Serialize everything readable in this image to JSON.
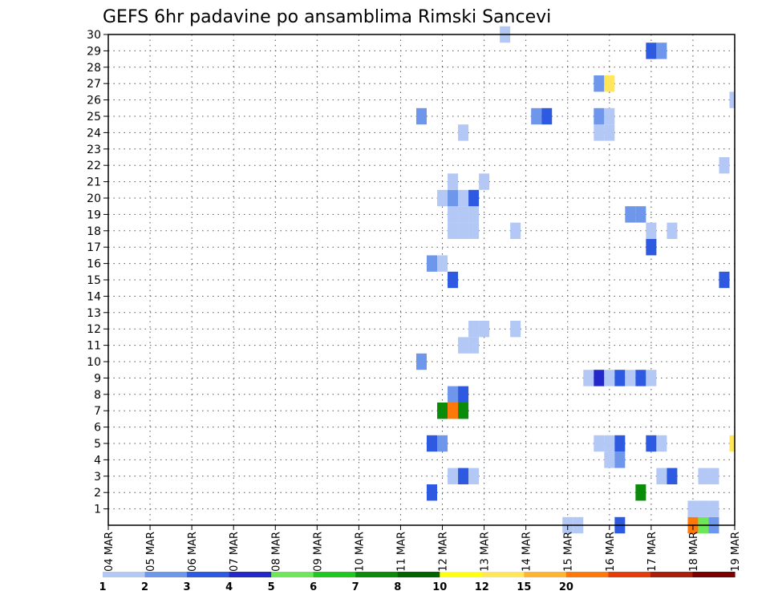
{
  "chart_data": {
    "type": "heatmap",
    "title": "GEFS 6hr padavine po ansamblima Rimski Sancevi",
    "x_tick_labels": [
      "04 MAR",
      "05 MAR",
      "06 MAR",
      "07 MAR",
      "08 MAR",
      "09 MAR",
      "10 MAR",
      "11 MAR",
      "12 MAR",
      "13 MAR",
      "14 MAR",
      "15 MAR",
      "16 MAR",
      "17 MAR",
      "18 MAR",
      "19 MAR"
    ],
    "y_tick_labels": [
      "1",
      "2",
      "3",
      "4",
      "5",
      "6",
      "7",
      "8",
      "9",
      "10",
      "11",
      "12",
      "13",
      "14",
      "15",
      "16",
      "17",
      "18",
      "19",
      "20",
      "21",
      "22",
      "23",
      "24",
      "25",
      "26",
      "27",
      "28",
      "29",
      "30"
    ],
    "xlim_days": [
      0,
      15
    ],
    "ylim": [
      0,
      30
    ],
    "cells_note": "x = days after 04 MAR 00Z in 6-hour steps, member = ensemble member (0-30), level = precipitation class index",
    "cells": [
      {
        "x": 11.0,
        "member": 0,
        "level": 0
      },
      {
        "x": 11.25,
        "member": 0,
        "level": 0
      },
      {
        "x": 12.25,
        "member": 0,
        "level": 2
      },
      {
        "x": 14.0,
        "member": 0,
        "level": 11
      },
      {
        "x": 14.25,
        "member": 0,
        "level": 4
      },
      {
        "x": 14.5,
        "member": 0,
        "level": 1
      },
      {
        "x": 14.0,
        "member": 1,
        "level": 0
      },
      {
        "x": 14.25,
        "member": 1,
        "level": 0
      },
      {
        "x": 14.5,
        "member": 1,
        "level": 0
      },
      {
        "x": 7.75,
        "member": 2,
        "level": 2
      },
      {
        "x": 12.75,
        "member": 2,
        "level": 6
      },
      {
        "x": 8.25,
        "member": 3,
        "level": 0
      },
      {
        "x": 8.5,
        "member": 3,
        "level": 2
      },
      {
        "x": 8.75,
        "member": 3,
        "level": 0
      },
      {
        "x": 13.25,
        "member": 3,
        "level": 0
      },
      {
        "x": 13.5,
        "member": 3,
        "level": 2
      },
      {
        "x": 14.25,
        "member": 3,
        "level": 0
      },
      {
        "x": 14.5,
        "member": 3,
        "level": 0
      },
      {
        "x": 12.0,
        "member": 4,
        "level": 0
      },
      {
        "x": 12.25,
        "member": 4,
        "level": 1
      },
      {
        "x": 7.75,
        "member": 5,
        "level": 2
      },
      {
        "x": 8.0,
        "member": 5,
        "level": 1
      },
      {
        "x": 11.75,
        "member": 5,
        "level": 0
      },
      {
        "x": 12.0,
        "member": 5,
        "level": 0
      },
      {
        "x": 12.25,
        "member": 5,
        "level": 2
      },
      {
        "x": 13.0,
        "member": 5,
        "level": 2
      },
      {
        "x": 13.25,
        "member": 5,
        "level": 0
      },
      {
        "x": 15.0,
        "member": 5,
        "level": 9
      },
      {
        "x": 8.0,
        "member": 7,
        "level": 6
      },
      {
        "x": 8.25,
        "member": 7,
        "level": 11
      },
      {
        "x": 8.5,
        "member": 7,
        "level": 6
      },
      {
        "x": 8.25,
        "member": 8,
        "level": 1
      },
      {
        "x": 8.5,
        "member": 8,
        "level": 2
      },
      {
        "x": 11.5,
        "member": 9,
        "level": 0
      },
      {
        "x": 11.75,
        "member": 9,
        "level": 3
      },
      {
        "x": 12.0,
        "member": 9,
        "level": 0
      },
      {
        "x": 12.25,
        "member": 9,
        "level": 2
      },
      {
        "x": 12.5,
        "member": 9,
        "level": 0
      },
      {
        "x": 12.75,
        "member": 9,
        "level": 2
      },
      {
        "x": 13.0,
        "member": 9,
        "level": 0
      },
      {
        "x": 7.5,
        "member": 10,
        "level": 1
      },
      {
        "x": 8.5,
        "member": 11,
        "level": 0
      },
      {
        "x": 8.75,
        "member": 11,
        "level": 0
      },
      {
        "x": 8.75,
        "member": 12,
        "level": 0
      },
      {
        "x": 9.0,
        "member": 12,
        "level": 0
      },
      {
        "x": 9.75,
        "member": 12,
        "level": 0
      },
      {
        "x": 8.25,
        "member": 15,
        "level": 2
      },
      {
        "x": 14.75,
        "member": 15,
        "level": 2
      },
      {
        "x": 7.75,
        "member": 16,
        "level": 1
      },
      {
        "x": 8.0,
        "member": 16,
        "level": 0
      },
      {
        "x": 13.0,
        "member": 17,
        "level": 2
      },
      {
        "x": 8.25,
        "member": 18,
        "level": 0
      },
      {
        "x": 8.5,
        "member": 18,
        "level": 0
      },
      {
        "x": 8.75,
        "member": 18,
        "level": 0
      },
      {
        "x": 9.75,
        "member": 18,
        "level": 0
      },
      {
        "x": 13.0,
        "member": 18,
        "level": 0
      },
      {
        "x": 13.5,
        "member": 18,
        "level": 0
      },
      {
        "x": 8.25,
        "member": 19,
        "level": 0
      },
      {
        "x": 8.5,
        "member": 19,
        "level": 0
      },
      {
        "x": 8.75,
        "member": 19,
        "level": 0
      },
      {
        "x": 12.5,
        "member": 19,
        "level": 1
      },
      {
        "x": 12.75,
        "member": 19,
        "level": 1
      },
      {
        "x": 8.0,
        "member": 20,
        "level": 0
      },
      {
        "x": 8.25,
        "member": 20,
        "level": 1
      },
      {
        "x": 8.5,
        "member": 20,
        "level": 0
      },
      {
        "x": 8.75,
        "member": 20,
        "level": 2
      },
      {
        "x": 8.25,
        "member": 21,
        "level": 0
      },
      {
        "x": 9.0,
        "member": 21,
        "level": 0
      },
      {
        "x": 14.75,
        "member": 22,
        "level": 0
      },
      {
        "x": 8.5,
        "member": 24,
        "level": 0
      },
      {
        "x": 11.75,
        "member": 24,
        "level": 0
      },
      {
        "x": 12.0,
        "member": 24,
        "level": 0
      },
      {
        "x": 7.5,
        "member": 25,
        "level": 1
      },
      {
        "x": 10.25,
        "member": 25,
        "level": 1
      },
      {
        "x": 10.5,
        "member": 25,
        "level": 2
      },
      {
        "x": 11.75,
        "member": 25,
        "level": 1
      },
      {
        "x": 12.0,
        "member": 25,
        "level": 0
      },
      {
        "x": 15.0,
        "member": 26,
        "level": 0
      },
      {
        "x": 11.75,
        "member": 27,
        "level": 1
      },
      {
        "x": 12.0,
        "member": 27,
        "level": 9
      },
      {
        "x": 13.0,
        "member": 29,
        "level": 2
      },
      {
        "x": 13.25,
        "member": 29,
        "level": 1
      },
      {
        "x": 9.5,
        "member": 30,
        "level": 0
      }
    ],
    "legend": {
      "labels": [
        "1",
        "2",
        "3",
        "4",
        "5",
        "6",
        "7",
        "8",
        "10",
        "12",
        "15",
        "20"
      ],
      "colors": [
        "#b4c8f5",
        "#6e96eb",
        "#2d5ae1",
        "#2328c8",
        "#6ee65a",
        "#1ec81e",
        "#0a8c0a",
        "#006400",
        "#ffff14",
        "#ffe65a",
        "#ffb432",
        "#ff780a",
        "#e63c0a",
        "#aa1e0a",
        "#780000"
      ]
    }
  }
}
